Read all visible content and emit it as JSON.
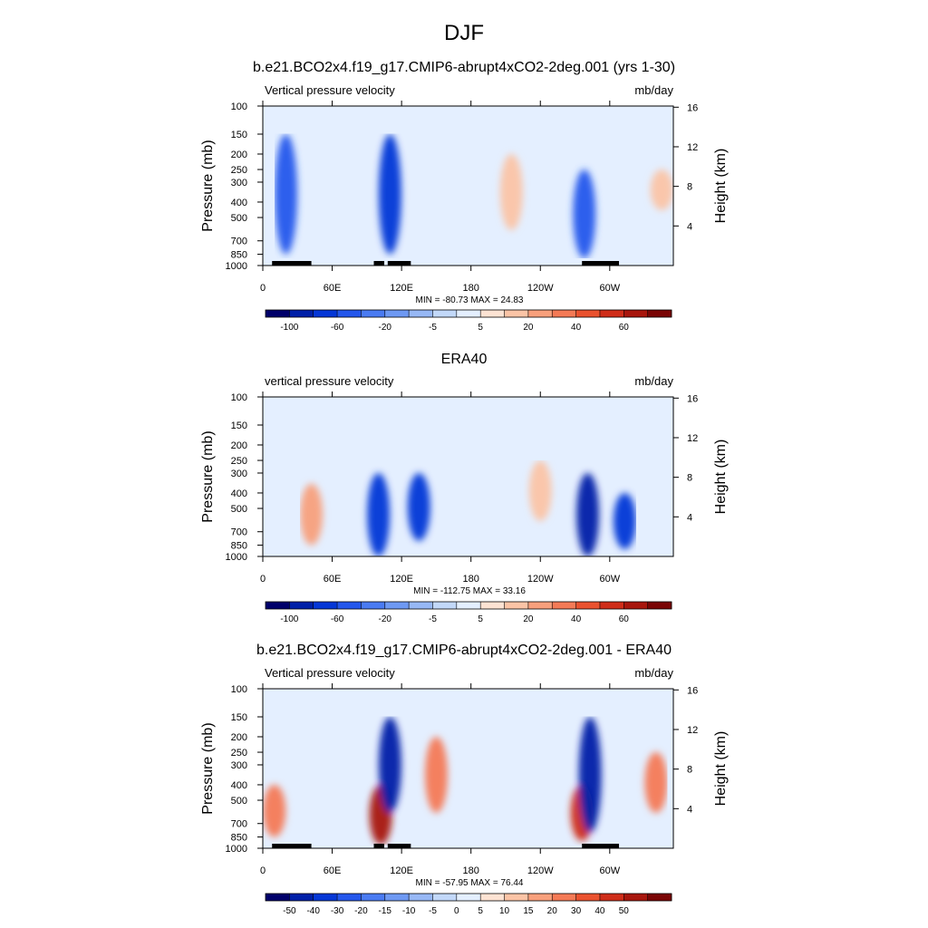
{
  "figure": {
    "title": "DJF"
  },
  "panels": [
    {
      "title": "b.e21.BCO2x4.f19_g17.CMIP6-abrupt4xCO2-2deg.001 (yrs 1-30)",
      "left_label": "Vertical pressure velocity",
      "right_label": "mb/day",
      "stats": "MIN = -80.73  MAX =  24.83",
      "colorbar_id": "full"
    },
    {
      "title": "ERA40",
      "left_label": "vertical pressure velocity",
      "right_label": "mb/day",
      "stats": "MIN = -112.75  MAX =  33.16",
      "colorbar_id": "full"
    },
    {
      "title": "b.e21.BCO2x4.f19_g17.CMIP6-abrupt4xCO2-2deg.001 - ERA40",
      "left_label": "Vertical pressure velocity",
      "right_label": "mb/day",
      "stats": "MIN = -57.95  MAX =  76.44",
      "colorbar_id": "diff"
    }
  ],
  "axes": {
    "ylabel_left": "Pressure (mb)",
    "ylabel_right": "Height (km)",
    "x_ticks": [
      {
        "lon": 0,
        "label": "0"
      },
      {
        "lon": 60,
        "label": "60E"
      },
      {
        "lon": 120,
        "label": "120E"
      },
      {
        "lon": 180,
        "label": "180"
      },
      {
        "lon": 240,
        "label": "120W"
      },
      {
        "lon": 300,
        "label": "60W"
      }
    ],
    "p_ticks": [
      100,
      150,
      200,
      250,
      300,
      400,
      500,
      700,
      850,
      1000
    ],
    "h_ticks": [
      4,
      8,
      12,
      16
    ],
    "xlim": [
      0,
      355
    ],
    "plim": [
      100,
      1000
    ]
  },
  "colorbars": {
    "full": {
      "colors": [
        "#00006a",
        "#0020a8",
        "#0537d6",
        "#2457ec",
        "#4a7bf2",
        "#6e99f3",
        "#97b8f5",
        "#c2d8f9",
        "#e4efff",
        "#fde3d3",
        "#fbc4a6",
        "#f8a07c",
        "#f47a56",
        "#ea522f",
        "#cf2d19",
        "#a8160d",
        "#7a0505"
      ],
      "labels": [
        {
          "edge": 1,
          "text": "-100"
        },
        {
          "edge": 3,
          "text": "-60"
        },
        {
          "edge": 5,
          "text": "-20"
        },
        {
          "edge": 7,
          "text": "-5"
        },
        {
          "edge": 9,
          "text": "5"
        },
        {
          "edge": 11,
          "text": "20"
        },
        {
          "edge": 13,
          "text": "40"
        },
        {
          "edge": 15,
          "text": "60"
        }
      ]
    },
    "diff": {
      "colors": [
        "#00006a",
        "#0020a8",
        "#0537d6",
        "#2457ec",
        "#4a7bf2",
        "#6e99f3",
        "#97b8f5",
        "#c2d8f9",
        "#e4efff",
        "#fde3d3",
        "#fbc4a6",
        "#f8a07c",
        "#f47a56",
        "#ea522f",
        "#cf2d19",
        "#a8160d",
        "#7a0505"
      ],
      "labels": [
        {
          "edge": 1,
          "text": "-50"
        },
        {
          "edge": 2,
          "text": "-40"
        },
        {
          "edge": 3,
          "text": "-30"
        },
        {
          "edge": 4,
          "text": "-20"
        },
        {
          "edge": 5,
          "text": "-15"
        },
        {
          "edge": 6,
          "text": "-10"
        },
        {
          "edge": 7,
          "text": "-5"
        },
        {
          "edge": 8,
          "text": "0"
        },
        {
          "edge": 9,
          "text": "5"
        },
        {
          "edge": 10,
          "text": "10"
        },
        {
          "edge": 11,
          "text": "15"
        },
        {
          "edge": 12,
          "text": "20"
        },
        {
          "edge": 13,
          "text": "30"
        },
        {
          "edge": 14,
          "text": "40"
        },
        {
          "edge": 15,
          "text": "50"
        }
      ]
    }
  },
  "chart_data": [
    {
      "type": "heatmap",
      "field": "vertical pressure velocity",
      "units": "mb/day",
      "min": -80.73,
      "max": 24.83,
      "xlim": [
        0,
        355
      ],
      "ylim": [
        1000,
        100
      ],
      "color_levels": [
        -100,
        -80,
        -60,
        -40,
        -20,
        -10,
        -5,
        0,
        5,
        10,
        20,
        30,
        40,
        50,
        60,
        80
      ],
      "topography_lon_ranges": [
        [
          8,
          42
        ],
        [
          96,
          105
        ],
        [
          108,
          128
        ],
        [
          276,
          308
        ]
      ],
      "features": [
        {
          "lon": 20,
          "p_range": [
            150,
            850
          ],
          "value": -40
        },
        {
          "lon": 110,
          "p_range": [
            150,
            850
          ],
          "value": -60
        },
        {
          "lon": 215,
          "p_range": [
            200,
            600
          ],
          "value": 15
        },
        {
          "lon": 345,
          "p_range": [
            250,
            450
          ],
          "value": 20
        },
        {
          "lon": 278,
          "p_range": [
            250,
            900
          ],
          "value": -40
        }
      ]
    },
    {
      "type": "heatmap",
      "field": "vertical pressure velocity",
      "units": "mb/day",
      "min": -112.75,
      "max": 33.16,
      "xlim": [
        0,
        355
      ],
      "ylim": [
        1000,
        100
      ],
      "color_levels": [
        -100,
        -80,
        -60,
        -40,
        -20,
        -10,
        -5,
        0,
        5,
        10,
        20,
        30,
        40,
        50,
        60,
        80
      ],
      "features": [
        {
          "lon": 42,
          "p_range": [
            350,
            850
          ],
          "value": 25
        },
        {
          "lon": 100,
          "p_range": [
            300,
            1000
          ],
          "value": -60
        },
        {
          "lon": 135,
          "p_range": [
            300,
            800
          ],
          "value": -60
        },
        {
          "lon": 240,
          "p_range": [
            250,
            600
          ],
          "value": 15
        },
        {
          "lon": 281,
          "p_range": [
            300,
            1000
          ],
          "value": -90
        },
        {
          "lon": 313,
          "p_range": [
            400,
            900
          ],
          "value": -70
        }
      ]
    },
    {
      "type": "heatmap",
      "field": "vertical pressure velocity difference",
      "units": "mb/day",
      "min": -57.95,
      "max": 76.44,
      "xlim": [
        0,
        355
      ],
      "ylim": [
        1000,
        100
      ],
      "color_levels": [
        -50,
        -40,
        -30,
        -20,
        -15,
        -10,
        -5,
        0,
        5,
        10,
        15,
        20,
        30,
        40,
        50
      ],
      "topography_lon_ranges": [
        [
          8,
          42
        ],
        [
          96,
          105
        ],
        [
          108,
          128
        ],
        [
          276,
          308
        ]
      ],
      "features": [
        {
          "lon": 10,
          "p_range": [
            400,
            850
          ],
          "value": 25
        },
        {
          "lon": 102,
          "p_range": [
            400,
            950
          ],
          "value": 60
        },
        {
          "lon": 110,
          "p_range": [
            150,
            600
          ],
          "value": -40
        },
        {
          "lon": 150,
          "p_range": [
            200,
            600
          ],
          "value": 25
        },
        {
          "lon": 276,
          "p_range": [
            400,
            900
          ],
          "value": 45
        },
        {
          "lon": 283,
          "p_range": [
            150,
            800
          ],
          "value": -45
        },
        {
          "lon": 340,
          "p_range": [
            250,
            600
          ],
          "value": 25
        }
      ]
    }
  ]
}
